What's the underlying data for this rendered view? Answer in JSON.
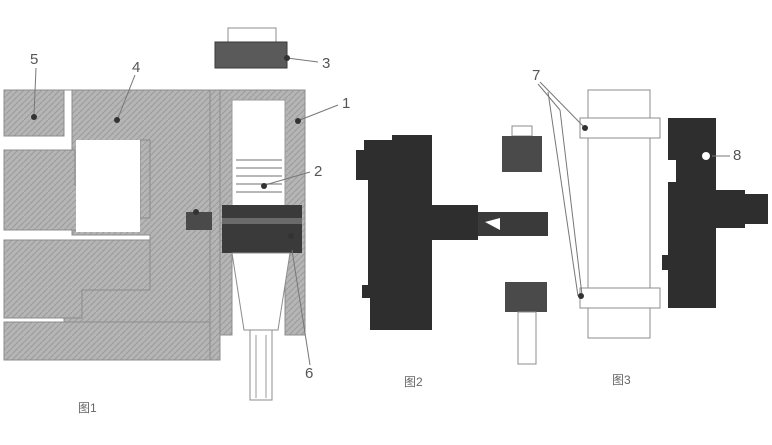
{
  "colors": {
    "hatch": "#b5b5b5",
    "hatch_line": "#8c8c8c",
    "dark": "#2e2e2e",
    "mid": "#6a6a6a",
    "outline": "#7a7a7a",
    "label": "#555555"
  },
  "labels": {
    "fig1": {
      "n5": "5",
      "n4": "4",
      "n3": "3",
      "n1": "1",
      "n2": "2",
      "n6": "6"
    },
    "fig3": {
      "n7": "7",
      "n8": "8"
    }
  },
  "captions": {
    "fig1": "图1",
    "fig2": "图2",
    "fig3": "图3"
  }
}
